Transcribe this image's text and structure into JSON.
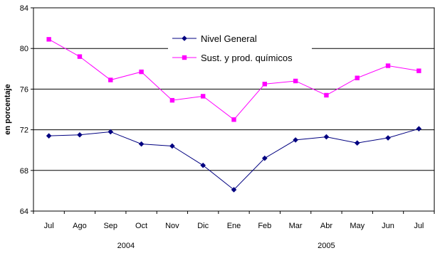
{
  "chart_data": {
    "type": "line",
    "title": "",
    "xlabel": "",
    "ylabel": "en porcentaje",
    "ylim": [
      64,
      84
    ],
    "yticks": [
      64,
      68,
      72,
      76,
      80,
      84
    ],
    "grid": true,
    "legend_position": "top-center",
    "categories": [
      "Jul",
      "Ago",
      "Sep",
      "Oct",
      "Nov",
      "Dic",
      "Ene",
      "Feb",
      "Mar",
      "Abr",
      "May",
      "Jun",
      "Jul"
    ],
    "year_groups": [
      {
        "label": "2004",
        "start": 0,
        "end": 5
      },
      {
        "label": "2005",
        "start": 6,
        "end": 12
      }
    ],
    "series": [
      {
        "name": "Nivel General",
        "color": "#000080",
        "marker": "diamond",
        "values": [
          71.4,
          71.5,
          71.8,
          70.6,
          70.4,
          68.5,
          66.1,
          69.2,
          71.0,
          71.3,
          70.7,
          71.2,
          72.1
        ]
      },
      {
        "name": "Sust. y prod. químicos",
        "color": "#FF00FF",
        "marker": "square",
        "values": [
          80.9,
          79.2,
          76.9,
          77.7,
          74.9,
          75.3,
          73.0,
          76.5,
          76.8,
          75.4,
          77.1,
          78.3,
          77.8
        ]
      }
    ]
  }
}
